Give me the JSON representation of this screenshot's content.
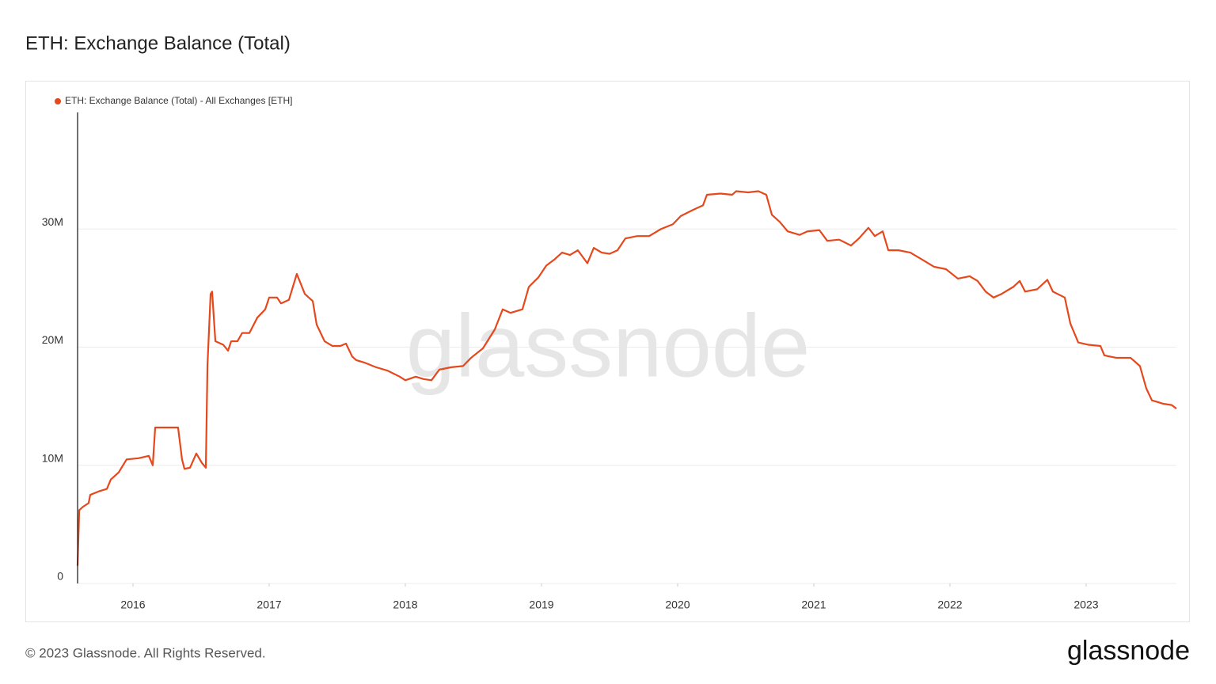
{
  "chart_data": {
    "type": "line",
    "title": "ETH: Exchange Balance (Total)",
    "watermark": "glassnode",
    "x": [
      2015.593,
      2015.605,
      2015.634,
      2015.674,
      2015.686,
      2015.75,
      2015.808,
      2015.837,
      2015.895,
      2015.953,
      2016.041,
      2016.116,
      2016.145,
      2016.163,
      2016.244,
      2016.331,
      2016.36,
      2016.378,
      2016.419,
      2016.465,
      2016.506,
      2016.535,
      2016.547,
      2016.57,
      2016.581,
      2016.605,
      2016.663,
      2016.698,
      2016.721,
      2016.767,
      2016.802,
      2016.855,
      2016.913,
      2016.971,
      2017.0,
      2017.058,
      2017.087,
      2017.145,
      2017.203,
      2017.262,
      2017.32,
      2017.349,
      2017.407,
      2017.465,
      2017.523,
      2017.564,
      2017.61,
      2017.64,
      2017.698,
      2017.785,
      2017.872,
      2017.959,
      2018.0,
      2018.076,
      2018.134,
      2018.192,
      2018.25,
      2018.337,
      2018.424,
      2018.483,
      2018.57,
      2018.657,
      2018.715,
      2018.773,
      2018.86,
      2018.907,
      2018.977,
      2019.035,
      2019.093,
      2019.151,
      2019.209,
      2019.267,
      2019.337,
      2019.384,
      2019.442,
      2019.5,
      2019.558,
      2019.616,
      2019.703,
      2019.791,
      2019.878,
      2019.965,
      2020.023,
      2020.11,
      2020.186,
      2020.215,
      2020.314,
      2020.401,
      2020.43,
      2020.517,
      2020.593,
      2020.651,
      2020.692,
      2020.75,
      2020.808,
      2020.895,
      2020.953,
      2021.041,
      2021.099,
      2021.186,
      2021.273,
      2021.331,
      2021.401,
      2021.448,
      2021.506,
      2021.547,
      2021.622,
      2021.709,
      2021.797,
      2021.884,
      2021.971,
      2022.058,
      2022.145,
      2022.203,
      2022.262,
      2022.32,
      2022.378,
      2022.465,
      2022.512,
      2022.552,
      2022.64,
      2022.715,
      2022.756,
      2022.843,
      2022.884,
      2022.942,
      2023.017,
      2023.105,
      2023.134,
      2023.221,
      2023.326,
      2023.395,
      2023.442,
      2023.483,
      2023.57,
      2023.628,
      2023.663
    ],
    "series": [
      {
        "name": "ETH: Exchange Balance (Total) - All Exchanges [ETH]",
        "color": "#e5481c",
        "values": [
          1500000,
          6200000,
          6500000,
          6800000,
          7500000,
          7800000,
          8000000,
          8800000,
          9400000,
          10500000,
          10600000,
          10800000,
          10000000,
          13200000,
          13200000,
          13200000,
          10500000,
          9700000,
          9800000,
          11000000,
          10200000,
          9800000,
          18500000,
          24500000,
          24700000,
          20500000,
          20200000,
          19700000,
          20500000,
          20500000,
          21200000,
          21200000,
          22500000,
          23200000,
          24200000,
          24200000,
          23700000,
          24000000,
          26200000,
          24500000,
          23900000,
          21900000,
          20500000,
          20100000,
          20100000,
          20300000,
          19200000,
          18900000,
          18700000,
          18300000,
          18000000,
          17500000,
          17200000,
          17500000,
          17300000,
          17200000,
          18100000,
          18300000,
          18400000,
          19100000,
          19900000,
          21500000,
          23200000,
          22900000,
          23200000,
          25100000,
          25900000,
          26900000,
          27400000,
          28000000,
          27800000,
          28200000,
          27100000,
          28400000,
          28000000,
          27900000,
          28200000,
          29200000,
          29400000,
          29400000,
          30000000,
          30400000,
          31100000,
          31600000,
          32000000,
          32900000,
          33000000,
          32900000,
          33200000,
          33100000,
          33200000,
          32900000,
          31200000,
          30600000,
          29800000,
          29500000,
          29800000,
          29900000,
          29000000,
          29100000,
          28600000,
          29200000,
          30100000,
          29400000,
          29800000,
          28200000,
          28200000,
          28000000,
          27400000,
          26800000,
          26600000,
          25800000,
          26000000,
          25600000,
          24700000,
          24200000,
          24500000,
          25100000,
          25600000,
          24700000,
          24900000,
          25700000,
          24700000,
          24200000,
          22000000,
          20400000,
          20200000,
          20100000,
          19300000,
          19100000,
          19100000,
          18400000,
          16500000,
          15500000,
          15200000,
          15100000,
          14800000
        ]
      }
    ],
    "xlim": [
      2015.593,
      2023.663
    ],
    "xticks": [
      2016,
      2017,
      2018,
      2019,
      2020,
      2021,
      2022,
      2023
    ],
    "ylim": [
      0,
      40000000
    ],
    "yticks": [
      0,
      {
        "value": 10000000,
        "label": "10M"
      },
      {
        "value": 20000000,
        "label": "20M"
      },
      {
        "value": 30000000,
        "label": "30M"
      }
    ],
    "grid": true
  },
  "footer": {
    "copyright": "© 2023 Glassnode. All Rights Reserved.",
    "logo": "glassnode"
  }
}
